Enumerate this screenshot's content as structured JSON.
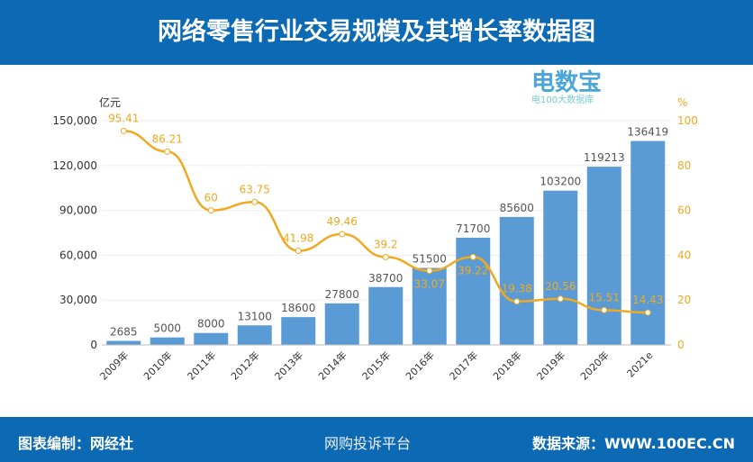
{
  "title": "网络零售行业交易规模及其增长率数据图",
  "footer": {
    "left": "图表编制：网经社",
    "right": "数据来源：WWW.100EC.CN",
    "watermark": "网购投诉平台"
  },
  "logo": {
    "name": "电数宝",
    "sub": "电100大数据库"
  },
  "colors": {
    "bar": "#5b9bd5",
    "line": "#f0a920",
    "band": "#0c6ab4"
  },
  "chart_data": {
    "type": "bar+line",
    "categories": [
      "2009年",
      "2010年",
      "2011年",
      "2012年",
      "2013年",
      "2014年",
      "2015年",
      "2016年",
      "2017年",
      "2018年",
      "2019年",
      "2020年",
      "2021e"
    ],
    "series": [
      {
        "type": "bar",
        "axis": "left",
        "values": [
          2685,
          5000,
          8000,
          13100,
          18600,
          27800,
          38700,
          51500,
          71700,
          85600,
          103200,
          119213,
          136419
        ]
      },
      {
        "type": "line",
        "axis": "right",
        "values": [
          95.41,
          86.21,
          60,
          63.75,
          41.98,
          49.46,
          39.2,
          33.07,
          39.22,
          19.38,
          20.56,
          15.51,
          14.43
        ]
      }
    ],
    "y_left": {
      "unit": "亿元",
      "range": [
        0,
        150000
      ],
      "ticks": [
        "0",
        "30,000",
        "60,000",
        "90,000",
        "120,000",
        "150,000"
      ]
    },
    "y_right": {
      "unit": "%",
      "range": [
        0,
        100
      ],
      "ticks": [
        "0",
        "20",
        "40",
        "60",
        "80",
        "100"
      ]
    }
  }
}
